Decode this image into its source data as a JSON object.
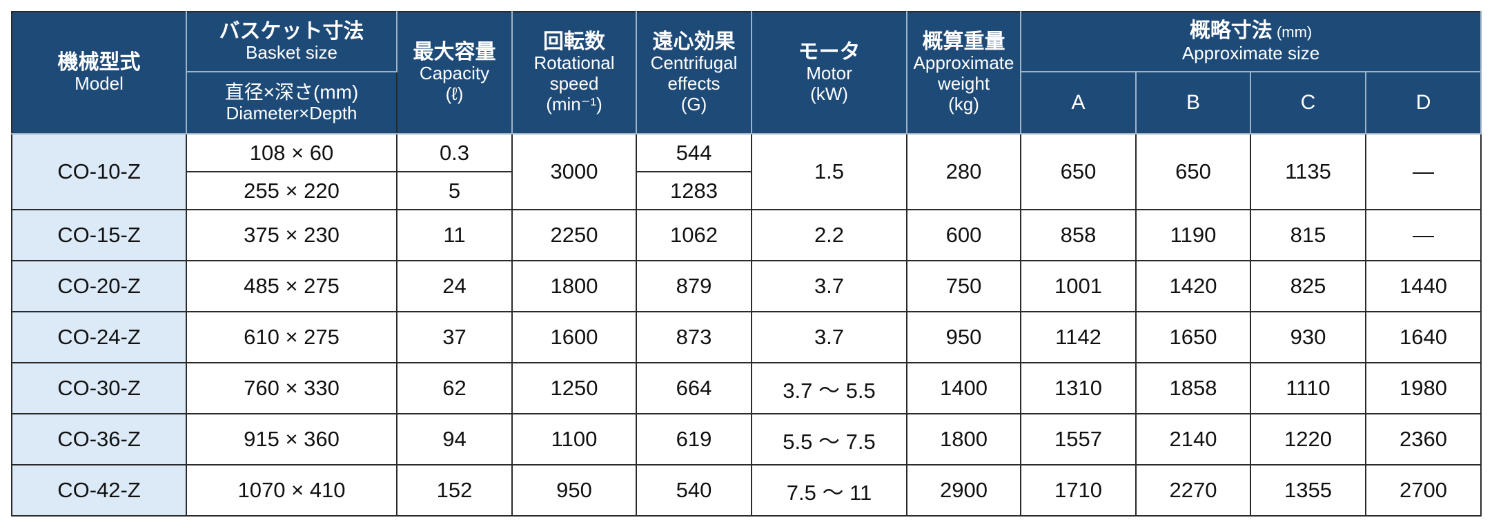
{
  "header": {
    "model": [
      "機械型式",
      "Model"
    ],
    "basket": [
      "バスケット寸法",
      "Basket size"
    ],
    "basket_sub": [
      "直径×深さ(mm)",
      "Diameter×Depth"
    ],
    "capacity": [
      "最大容量",
      "Capacity",
      "(ℓ)"
    ],
    "speed": [
      "回転数",
      "Rotational",
      "speed",
      "(min⁻¹)"
    ],
    "effects": [
      "遠心効果",
      "Centrifugal",
      "effects",
      "(G)"
    ],
    "motor": [
      "モータ",
      "Motor",
      "(kW)"
    ],
    "weight": [
      "概算重量",
      "Approximate",
      "weight",
      "(kg)"
    ],
    "size": [
      "概略寸法",
      "(mm)",
      "Approximate size"
    ],
    "size_cols": [
      "A",
      "B",
      "C",
      "D"
    ]
  },
  "rows": [
    {
      "model": "CO-10-Z",
      "basket": [
        "108 × 60",
        "255 × 220"
      ],
      "capacity": [
        "0.3",
        "5"
      ],
      "speed": "3000",
      "effects": [
        "544",
        "1283"
      ],
      "motor": "1.5",
      "weight": "280",
      "size": [
        "650",
        "650",
        "1135",
        "—"
      ]
    },
    {
      "model": "CO-15-Z",
      "basket": [
        "375 × 230"
      ],
      "capacity": [
        "11"
      ],
      "speed": "2250",
      "effects": [
        "1062"
      ],
      "motor": "2.2",
      "weight": "600",
      "size": [
        "858",
        "1190",
        "815",
        "—"
      ]
    },
    {
      "model": "CO-20-Z",
      "basket": [
        "485 × 275"
      ],
      "capacity": [
        "24"
      ],
      "speed": "1800",
      "effects": [
        "879"
      ],
      "motor": "3.7",
      "weight": "750",
      "size": [
        "1001",
        "1420",
        "825",
        "1440"
      ]
    },
    {
      "model": "CO-24-Z",
      "basket": [
        "610 × 275"
      ],
      "capacity": [
        "37"
      ],
      "speed": "1600",
      "effects": [
        "873"
      ],
      "motor": "3.7",
      "weight": "950",
      "size": [
        "1142",
        "1650",
        "930",
        "1640"
      ]
    },
    {
      "model": "CO-30-Z",
      "basket": [
        "760 × 330"
      ],
      "capacity": [
        "62"
      ],
      "speed": "1250",
      "effects": [
        "664"
      ],
      "motor": "3.7 ～ 5.5",
      "weight": "1400",
      "size": [
        "1310",
        "1858",
        "1110",
        "1980"
      ]
    },
    {
      "model": "CO-36-Z",
      "basket": [
        "915 × 360"
      ],
      "capacity": [
        "94"
      ],
      "speed": "1100",
      "effects": [
        "619"
      ],
      "motor": "5.5 ～ 7.5",
      "weight": "1800",
      "size": [
        "1557",
        "2140",
        "1220",
        "2360"
      ]
    },
    {
      "model": "CO-42-Z",
      "basket": [
        "1070 × 410"
      ],
      "capacity": [
        "152"
      ],
      "speed": "950",
      "effects": [
        "540"
      ],
      "motor": "7.5 ～ 11",
      "weight": "2900",
      "size": [
        "1710",
        "2270",
        "1355",
        "2700"
      ]
    }
  ]
}
